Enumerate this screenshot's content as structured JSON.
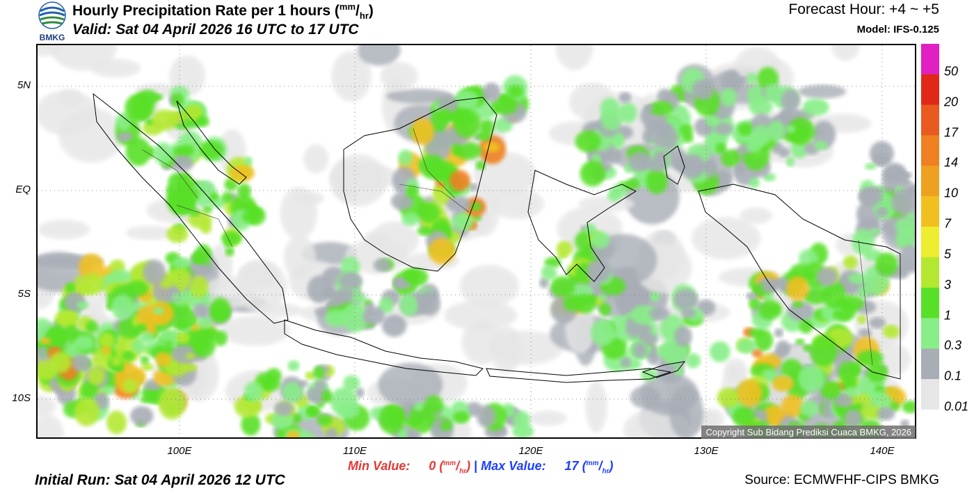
{
  "header": {
    "logo_text": "BMKG",
    "title_main": "Hourly Precipitation Rate per 1 hours (",
    "title_unit_num": "mm",
    "title_unit_den": "hr",
    "title_close": ")",
    "valid": "Valid: Sat 04 April 2026 16 UTC to 17 UTC",
    "forecast_hour": "Forecast Hour: +4 ~ +5",
    "model": "Model: IFS-0.125"
  },
  "map": {
    "lat_labels": [
      "5N",
      "EQ",
      "5S",
      "10S"
    ],
    "lon_labels": [
      "100E",
      "110E",
      "120E",
      "130E",
      "140E"
    ],
    "copyright": "Copyright Sub Bidang Prediksi Cuaca BMKG, 2026"
  },
  "colorbar": {
    "labels": [
      "50",
      "20",
      "17",
      "14",
      "10",
      "7",
      "5",
      "3",
      "1",
      "0.3",
      "0.1",
      "0.01"
    ],
    "colors": [
      "#e020c0",
      "#e02818",
      "#e85a20",
      "#ee8020",
      "#eea020",
      "#f0c020",
      "#eeee30",
      "#b4e830",
      "#58e028",
      "#88ee88",
      "#a8adb6",
      "#e6e6e6"
    ]
  },
  "footer": {
    "min_label": "Min Value:",
    "min_value": "0",
    "max_label": "Max Value:",
    "max_value": "17",
    "unit_num": "mm",
    "unit_den": "hr",
    "separator": "|",
    "initial_run": "Initial Run: Sat 04 April 2026 12 UTC",
    "source": "Source: ECMWFHF-CIPS BMKG"
  }
}
